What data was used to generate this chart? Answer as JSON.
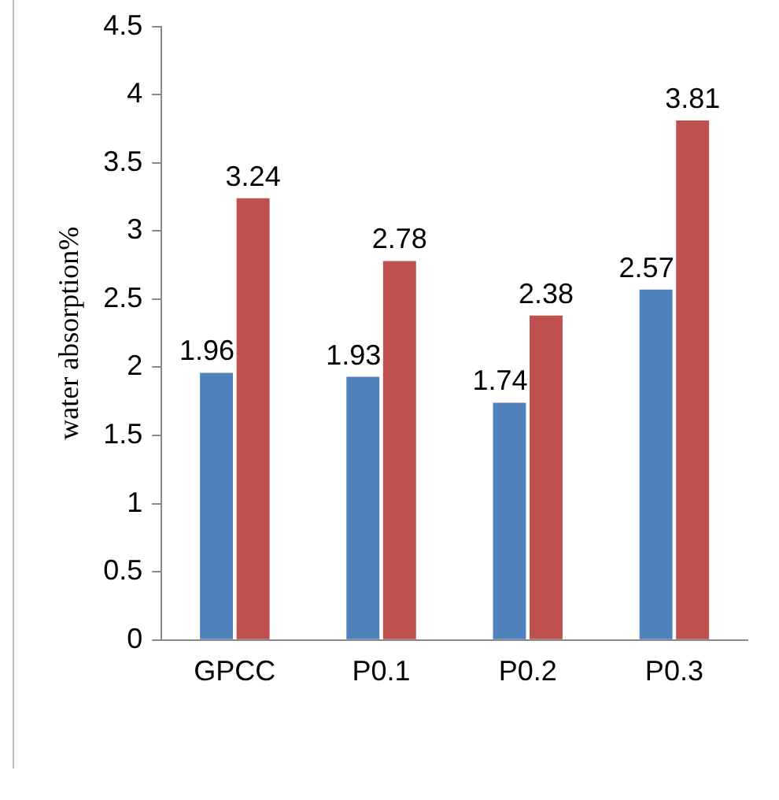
{
  "chart_data": {
    "type": "bar",
    "ylabel": "water absorption%",
    "categories": [
      "GPCC",
      "P0.1",
      "P0.2",
      "P0.3"
    ],
    "series": [
      {
        "color": "#4f81bd",
        "values": [
          1.96,
          1.93,
          1.74,
          2.57
        ]
      },
      {
        "color": "#c0504d",
        "values": [
          3.24,
          2.78,
          2.38,
          3.81
        ]
      }
    ],
    "ylim": [
      0,
      4.5
    ],
    "yticks": [
      0,
      0.5,
      1,
      1.5,
      2,
      2.5,
      3,
      3.5,
      4,
      4.5
    ],
    "grid": false,
    "legend": false,
    "data_labels": true
  }
}
